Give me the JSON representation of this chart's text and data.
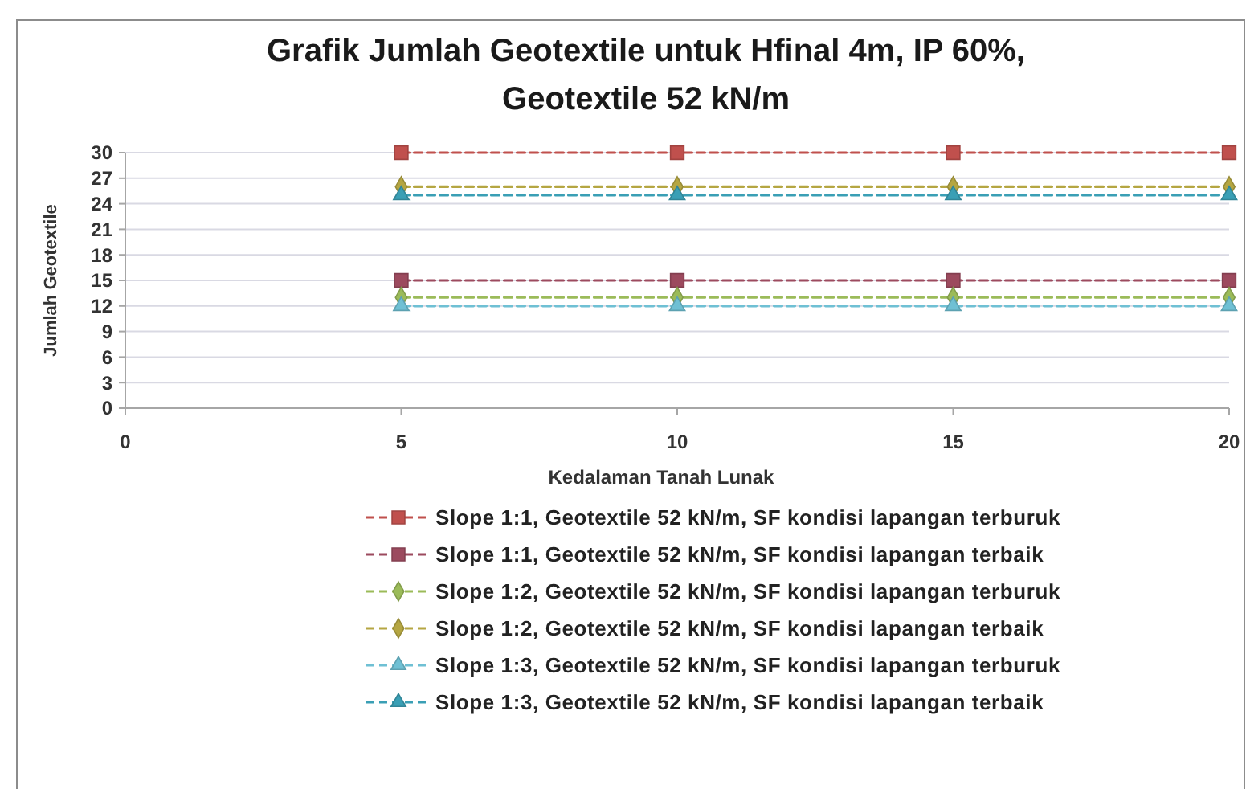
{
  "chart_data": {
    "type": "line",
    "title": "Grafik Jumlah Geotextile untuk Hfinal 4m, IP 60%,\nGeotextile 52 kN/m",
    "xlabel": "Kedalaman Tanah Lunak",
    "ylabel": "Jumlah Geotextile",
    "x": [
      5,
      10,
      15,
      20
    ],
    "series": [
      {
        "name": "Slope 1:1, Geotextile 52 kN/m, SF kondisi lapangan terburuk",
        "color": "#c0504d",
        "marker": "square",
        "values": [
          30,
          30,
          30,
          30
        ]
      },
      {
        "name": "Slope 1:1, Geotextile 52 kN/m, SF kondisi lapangan terbaik",
        "color": "#9c4a5e",
        "marker": "square",
        "values": [
          15,
          15,
          15,
          15
        ]
      },
      {
        "name": "Slope 1:2, Geotextile 52 kN/m, SF kondisi lapangan terburuk",
        "color": "#9bbb59",
        "marker": "diamond",
        "values": [
          13,
          13,
          13,
          13
        ]
      },
      {
        "name": "Slope 1:2, Geotextile 52 kN/m, SF kondisi lapangan terbaik",
        "color": "#b5a642",
        "marker": "diamond",
        "values": [
          26,
          26,
          26,
          26
        ]
      },
      {
        "name": "Slope 1:3, Geotextile 52 kN/m, SF kondisi lapangan terburuk",
        "color": "#6fc0d4",
        "marker": "triangle",
        "values": [
          12,
          12,
          12,
          12
        ]
      },
      {
        "name": "Slope 1:3, Geotextile 52 kN/m, SF kondisi lapangan terbaik",
        "color": "#3a9fb5",
        "marker": "triangle",
        "values": [
          25,
          25,
          25,
          25
        ]
      }
    ],
    "xlim": [
      0,
      20
    ],
    "xticks": [
      0,
      5,
      10,
      15,
      20
    ],
    "ylim": [
      0,
      30
    ],
    "yticks": [
      0,
      3,
      6,
      9,
      12,
      15,
      18,
      21,
      24,
      27,
      30
    ],
    "grid": "y",
    "legend": "bottom",
    "line_style": "dashed"
  }
}
